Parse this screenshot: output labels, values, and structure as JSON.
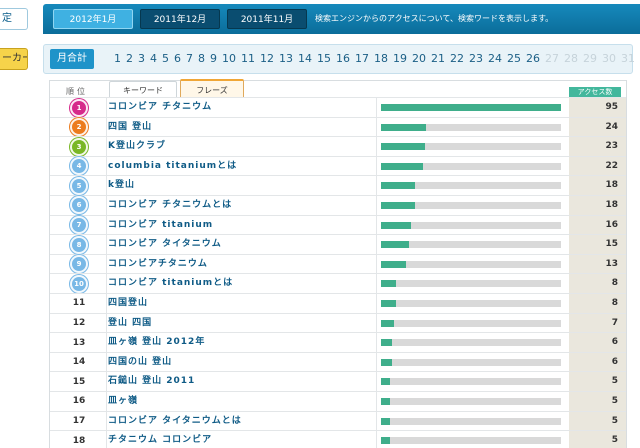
{
  "sidebar": {
    "item1_label": "定",
    "item2_label": "ーカー"
  },
  "month_tabs": [
    {
      "label": "2012年1月",
      "active": true
    },
    {
      "label": "2011年12月",
      "active": false
    },
    {
      "label": "2011年11月",
      "active": false
    }
  ],
  "month_desc": "検索エンジンからのアクセスについて、検索ワードを表示します。",
  "day_selector": {
    "monthly_label": "月合計",
    "days": [
      "1",
      "2",
      "3",
      "4",
      "5",
      "6",
      "7",
      "8",
      "9",
      "10",
      "11",
      "12",
      "13",
      "14",
      "15",
      "16",
      "17",
      "18",
      "19",
      "20",
      "21",
      "22",
      "23",
      "24",
      "25",
      "26",
      "27",
      "28",
      "29",
      "30",
      "31"
    ],
    "dimmed_from": 27
  },
  "table": {
    "rank_header": "順位",
    "tab_keyword": "キーワード",
    "tab_phrase": "フレーズ",
    "access_header": "アクセス数",
    "max_value": 95,
    "badge_colors": [
      "#d62a8b",
      "#ec7c1e",
      "#7ab726",
      "#78b8e6",
      "#78b8e6",
      "#78b8e6",
      "#78b8e6",
      "#78b8e6",
      "#78b8e6",
      "#78b8e6"
    ],
    "rows": [
      {
        "rank": "1",
        "keyword": "コロンビア チタニウム",
        "count": 95
      },
      {
        "rank": "2",
        "keyword": "四国 登山",
        "count": 24
      },
      {
        "rank": "3",
        "keyword": "K登山クラブ",
        "count": 23
      },
      {
        "rank": "4",
        "keyword": "columbia titaniumとは",
        "count": 22
      },
      {
        "rank": "5",
        "keyword": "k登山",
        "count": 18
      },
      {
        "rank": "6",
        "keyword": "コロンビア チタニウムとは",
        "count": 18
      },
      {
        "rank": "7",
        "keyword": "コロンビア titanium",
        "count": 16
      },
      {
        "rank": "8",
        "keyword": "コロンビア タイタニウム",
        "count": 15
      },
      {
        "rank": "9",
        "keyword": "コロンビアチタニウム",
        "count": 13
      },
      {
        "rank": "10",
        "keyword": "コロンビア titaniumとは",
        "count": 8
      },
      {
        "rank": "11",
        "keyword": "四国登山",
        "count": 8
      },
      {
        "rank": "12",
        "keyword": "登山 四国",
        "count": 7
      },
      {
        "rank": "13",
        "keyword": "皿ヶ嶺 登山 2012年",
        "count": 6
      },
      {
        "rank": "14",
        "keyword": "四国の山 登山",
        "count": 6
      },
      {
        "rank": "15",
        "keyword": "石鎚山 登山 2011",
        "count": 5
      },
      {
        "rank": "16",
        "keyword": "皿ヶ嶺",
        "count": 5
      },
      {
        "rank": "17",
        "keyword": "コロンビア タイタニウムとは",
        "count": 5
      },
      {
        "rank": "18",
        "keyword": "チタニウム コロンビア",
        "count": 5
      }
    ]
  }
}
